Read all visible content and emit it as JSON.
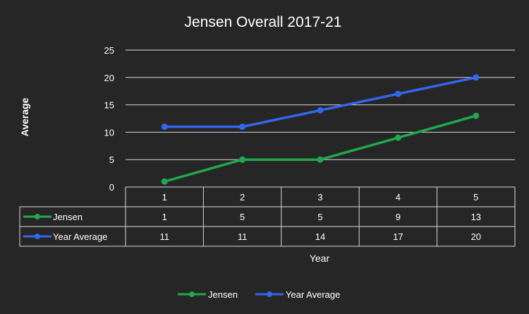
{
  "chart_data": {
    "type": "line",
    "title": "Jensen Overall 2017-21",
    "xlabel": "Year",
    "ylabel": "Average",
    "categories": [
      "1",
      "2",
      "3",
      "4",
      "5"
    ],
    "ylim": [
      0,
      25
    ],
    "yticks": [
      "0",
      "5",
      "10",
      "15",
      "20",
      "25"
    ],
    "grid": true,
    "legend_position": "bottom",
    "data_table": true,
    "series": [
      {
        "name": "Jensen",
        "color": "#1fa84f",
        "values": [
          1,
          5,
          5,
          9,
          13
        ]
      },
      {
        "name": "Year Average",
        "color": "#3366ee",
        "values": [
          11,
          11,
          14,
          17,
          20
        ]
      }
    ]
  }
}
